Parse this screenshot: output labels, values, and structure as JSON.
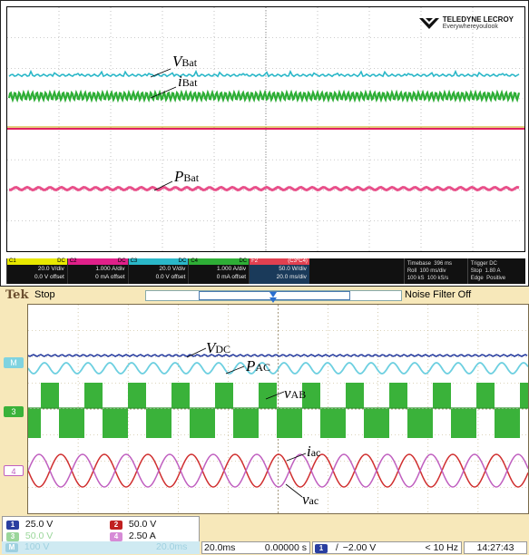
{
  "top_scope": {
    "brand": {
      "name": "TELEDYNE LECROY",
      "tagline": "Everywhereyoulook"
    },
    "labels": {
      "vbat": "V",
      "vbat_sub": "Bat",
      "ibat": "i",
      "ibat_sub": "Bat",
      "pbat": "P",
      "pbat_sub": "Bat"
    },
    "channels": [
      {
        "id": "C1",
        "tag": "DC",
        "color": "#E8E800",
        "scale": "20.0 V/div",
        "offset": "0.0 V offset"
      },
      {
        "id": "C2",
        "tag": "DC",
        "color": "#E0208A",
        "scale": "1.000 A/div",
        "offset": "0 mA offset"
      },
      {
        "id": "C3",
        "tag": "DC",
        "color": "#2AB7C8",
        "scale": "20.0 V/div",
        "offset": "0.0 V offset"
      },
      {
        "id": "C4",
        "tag": "DC",
        "color": "#2EAE36",
        "scale": "1.000 A/div",
        "offset": "0 mA offset"
      },
      {
        "id": "F2",
        "tag": "(C3*C4)",
        "color": "#E04050",
        "scale": "50.0 W/div",
        "offset": "20.0 ms/div"
      }
    ],
    "timebase": {
      "label": "Timebase",
      "value": "396 ms",
      "mode": "Roll",
      "rate": "100 ms/div",
      "samples": "100 kS",
      "srate": "100 kS/s"
    },
    "trigger": {
      "label": "Trigger",
      "tag": "DC",
      "mode": "Stop",
      "level": "1.80 A",
      "type": "Edge",
      "slope": "Positive"
    }
  },
  "bottom_scope": {
    "brand": "Tek",
    "status": "Stop",
    "noise_filter": "Noise Filter Off",
    "labels": {
      "vdc": "V",
      "vdc_sub": "DC",
      "pac": "P",
      "pac_sub": "AC",
      "vab": "v",
      "vab_sub": "AB",
      "iac": "i",
      "iac_sub": "ac",
      "vac": "v",
      "vac_sub": "ac"
    },
    "channel_markers": [
      "M",
      "3",
      "4"
    ],
    "readouts": [
      {
        "ch": "1",
        "color": "#2A3FA0",
        "value": "25.0 V"
      },
      {
        "ch": "2",
        "color": "#C02020",
        "value": "50.0 V"
      },
      {
        "ch": "3",
        "color": "#3AB23A",
        "value": "50.0 V"
      },
      {
        "ch": "4",
        "color": "#C060C0",
        "value": "2.50 A"
      },
      {
        "ch": "M",
        "color": "#5BC0DE",
        "value": "100 V"
      }
    ],
    "math_time": "20.0ms",
    "time_div": "20.0ms",
    "position": "0.00000 s",
    "trigger": {
      "ch": "1",
      "slope": "/",
      "level": "−2.00 V"
    },
    "freq": "< 10 Hz",
    "clock": "14:27:43"
  }
}
